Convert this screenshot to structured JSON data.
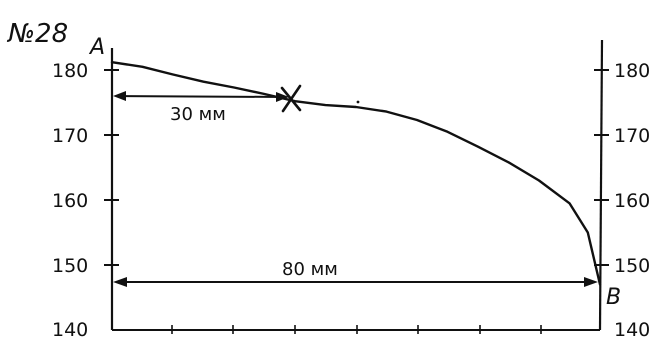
{
  "figure_number": "№28",
  "points": {
    "start": "A",
    "end": "B"
  },
  "left_axis": {
    "ticks": [
      "180",
      "170",
      "160",
      "150",
      "140"
    ]
  },
  "right_axis": {
    "ticks": [
      "180",
      "170",
      "160",
      "150",
      "140"
    ]
  },
  "dimensions": {
    "short_label": "30 мм",
    "long_label": "80 мм"
  },
  "marker": "×",
  "chart_data": {
    "type": "line",
    "series": [
      {
        "values": [
          [
            0,
            181.2
          ],
          [
            5,
            180.5
          ],
          [
            10,
            179.3
          ],
          [
            15,
            178.2
          ],
          [
            20,
            177.3
          ],
          [
            25,
            176.3
          ],
          [
            30,
            175.2
          ],
          [
            35,
            174.6
          ],
          [
            40,
            174.3
          ],
          [
            45,
            173.6
          ],
          [
            50,
            172.3
          ],
          [
            55,
            170.5
          ],
          [
            60,
            168.2
          ],
          [
            65,
            165.8
          ],
          [
            70,
            163.0
          ],
          [
            75,
            159.5
          ],
          [
            78,
            155.0
          ],
          [
            80,
            147.0
          ]
        ]
      }
    ],
    "ylim": [
      140,
      183
    ],
    "xlim": [
      0,
      80
    ]
  }
}
